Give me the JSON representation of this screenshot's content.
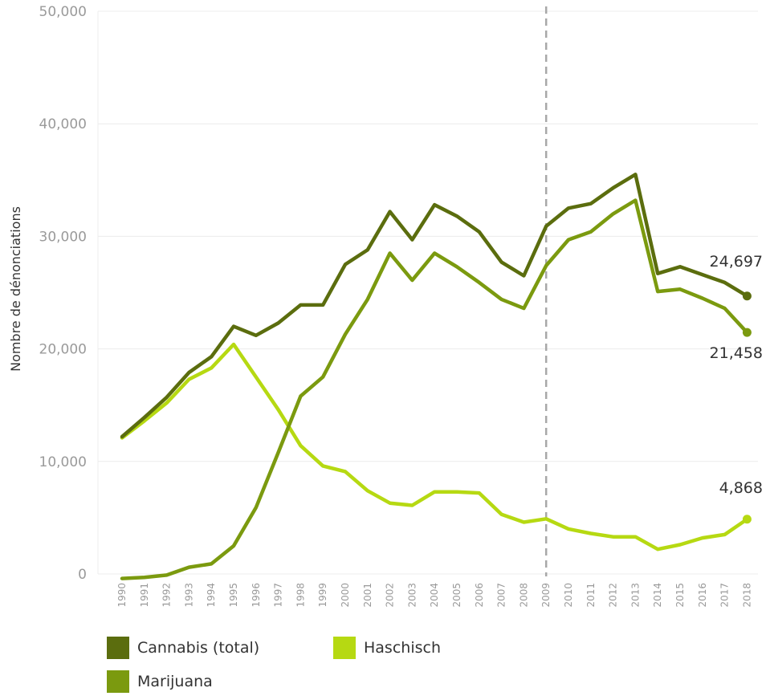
{
  "chart_data": {
    "type": "line",
    "ylabel": "Nombre de dénonciations",
    "ylim": [
      0,
      50000
    ],
    "yticks": [
      0,
      10000,
      20000,
      30000,
      40000,
      50000
    ],
    "ytick_labels": [
      "0",
      "10,000",
      "20,000",
      "30,000",
      "40,000",
      "50,000"
    ],
    "x": [
      "1990",
      "1991",
      "1992",
      "1993",
      "1994",
      "1995",
      "1996",
      "1997",
      "1998",
      "1999",
      "2000",
      "2001",
      "2002",
      "2003",
      "2004",
      "2005",
      "2006",
      "2007",
      "2008",
      "2009",
      "2010",
      "2011",
      "2012",
      "2013",
      "2014",
      "2015",
      "2016",
      "2017",
      "2018"
    ],
    "reference_line": {
      "x": "2009",
      "style": "dashed"
    },
    "grid": true,
    "legend_position": "bottom",
    "series": [
      {
        "name": "Cannabis (total)",
        "color": "#5b6d0e",
        "values": [
          12200,
          13900,
          15700,
          17900,
          19300,
          22000,
          21200,
          22300,
          23900,
          23900,
          27500,
          28800,
          32200,
          29700,
          32800,
          31800,
          30400,
          27700,
          26500,
          30900,
          32500,
          32900,
          34300,
          35500,
          26700,
          27300,
          26600,
          25900,
          24697
        ],
        "end_label": "24,697"
      },
      {
        "name": "Marijuana",
        "color": "#7b9a0f",
        "values": [
          -400,
          -300,
          -100,
          600,
          900,
          2500,
          5900,
          10800,
          15800,
          17500,
          21300,
          24400,
          28500,
          26100,
          28500,
          27300,
          25900,
          24400,
          23600,
          27400,
          29700,
          30400,
          32000,
          33200,
          25100,
          25300,
          24500,
          23600,
          21458
        ],
        "end_label": "21,458"
      },
      {
        "name": "Haschisch",
        "color": "#b6d912",
        "values": [
          12100,
          13600,
          15200,
          17300,
          18300,
          20400,
          17500,
          14600,
          11400,
          9600,
          9100,
          7400,
          6300,
          6100,
          7300,
          7300,
          7200,
          5300,
          4600,
          4900,
          4000,
          3600,
          3300,
          3300,
          2200,
          2600,
          3200,
          3500,
          4868
        ],
        "end_label": "4,868"
      }
    ]
  }
}
